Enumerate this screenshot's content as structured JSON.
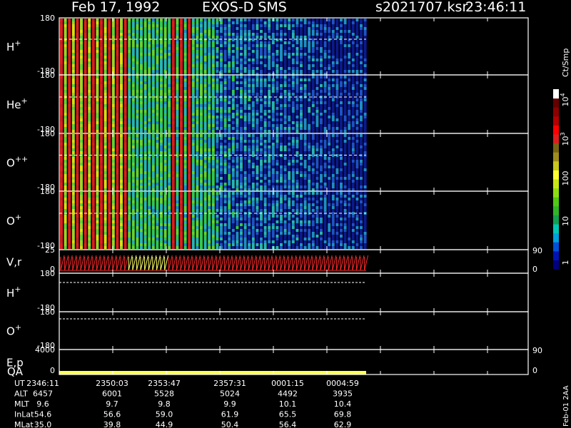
{
  "header": {
    "date": "Feb 17, 1992",
    "instrument": "EXOS-D SMS",
    "file": "s2021707.ksr",
    "time": "23:46:11"
  },
  "panels": [
    {
      "label": "H",
      "sup": "+",
      "ticks": [
        "180",
        "-180"
      ]
    },
    {
      "label": "He",
      "sup": "+",
      "ticks": [
        "180",
        "-180"
      ]
    },
    {
      "label": "O",
      "sup": "++",
      "ticks": [
        "180",
        "-180"
      ]
    },
    {
      "label": "O",
      "sup": "+",
      "ticks": [
        "180",
        "-180"
      ]
    },
    {
      "label": "V,r",
      "ticks": [
        "25",
        "0"
      ],
      "right_ticks": [
        "90",
        "0"
      ]
    },
    {
      "label": "H",
      "sup": "+",
      "ticks": [
        "180",
        "-180"
      ]
    },
    {
      "label": "O",
      "sup": "+",
      "ticks": [
        "180",
        "-180"
      ]
    },
    {
      "label": "E,p",
      "ticks": [
        "4000",
        "0"
      ],
      "right_ticks": [
        "90",
        "0"
      ]
    }
  ],
  "qa_label": "QA",
  "table": {
    "rows": [
      [
        "UT",
        "2346:11",
        "2350:03",
        "2353:47",
        "2357:31",
        "0001:15",
        "0004:59"
      ],
      [
        "ALT",
        "6457",
        "6001",
        "5528",
        "5024",
        "4492",
        "3935"
      ],
      [
        "MLT",
        "9.6",
        "9.7",
        "9.8",
        "9.9",
        "10.1",
        "10.4"
      ],
      [
        "InLat",
        "54.6",
        "56.6",
        "59.0",
        "61.9",
        "65.5",
        "69.8"
      ],
      [
        "MLat",
        "35.0",
        "39.8",
        "44.9",
        "50.4",
        "56.4",
        "62.9"
      ]
    ]
  },
  "colorbar": {
    "unit": "Ct/Smp",
    "labels": [
      {
        "base": "10",
        "sup": "4"
      },
      {
        "base": "10",
        "sup": "3"
      },
      {
        "base": "100"
      },
      {
        "base": "10"
      },
      {
        "base": "1"
      }
    ]
  },
  "footer": "Feb-01 2AA"
}
